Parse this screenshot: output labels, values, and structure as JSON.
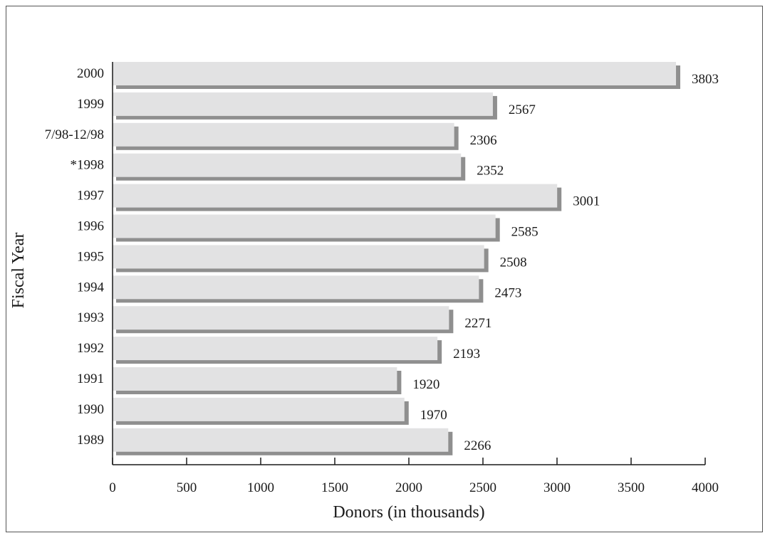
{
  "chart_data": {
    "type": "bar",
    "orientation": "horizontal",
    "categories": [
      "2000",
      "1999",
      "7/98-12/98",
      "*1998",
      "1997",
      "1996",
      "1995",
      "1994",
      "1993",
      "1992",
      "1991",
      "1990",
      "1989"
    ],
    "values": [
      3803,
      2567,
      2306,
      2352,
      3001,
      2585,
      2508,
      2473,
      2271,
      2193,
      1920,
      1970,
      2266
    ],
    "xlabel": "Donors (in thousands)",
    "ylabel": "Fiscal Year",
    "xlim": [
      0,
      4000
    ],
    "xticks": [
      0,
      500,
      1000,
      1500,
      2000,
      2500,
      3000,
      3500,
      4000
    ],
    "grid": false,
    "colors": {
      "bar": "#e2e2e3",
      "shadow": "#8f8f8f",
      "axis": "#1a1a1a"
    }
  }
}
